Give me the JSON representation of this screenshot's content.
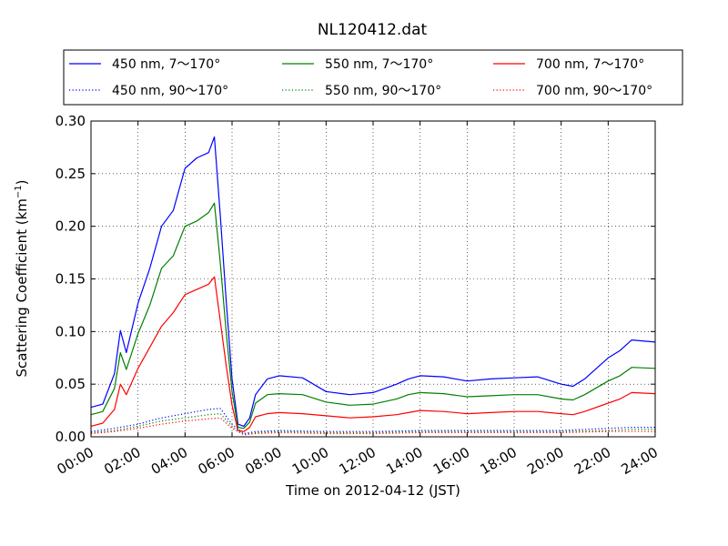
{
  "chart_data": {
    "type": "line",
    "title": "NL120412.dat",
    "xlabel": "Time on 2012-04-12 (JST)",
    "ylabel": "Scattering Coefficient (km",
    "ylabel_sup": "−1",
    "ylabel_end": ")",
    "xlim": [
      "00:00",
      "24:00"
    ],
    "ylim": [
      0.0,
      0.3
    ],
    "grid": true,
    "legend_position": "top",
    "x_ticks": [
      "00:00",
      "02:00",
      "04:00",
      "06:00",
      "08:00",
      "10:00",
      "12:00",
      "14:00",
      "16:00",
      "18:00",
      "20:00",
      "22:00",
      "24:00"
    ],
    "y_ticks": [
      "0.00",
      "0.05",
      "0.10",
      "0.15",
      "0.20",
      "0.25",
      "0.30"
    ],
    "series": [
      {
        "name": "450 nm, 7～170°",
        "color": "#0000ff",
        "dash": "solid",
        "x": [
          "00:00",
          "00:30",
          "01:00",
          "01:15",
          "01:30",
          "02:00",
          "02:30",
          "03:00",
          "03:30",
          "04:00",
          "04:30",
          "05:00",
          "05:15",
          "05:30",
          "05:45",
          "06:00",
          "06:15",
          "06:30",
          "06:45",
          "07:00",
          "07:30",
          "08:00",
          "09:00",
          "10:00",
          "11:00",
          "12:00",
          "13:00",
          "13:30",
          "14:00",
          "15:00",
          "16:00",
          "17:00",
          "18:00",
          "19:00",
          "20:00",
          "20:30",
          "21:00",
          "22:00",
          "22:30",
          "23:00",
          "24:00"
        ],
        "values": [
          0.028,
          0.031,
          0.06,
          0.101,
          0.08,
          0.127,
          0.16,
          0.2,
          0.215,
          0.255,
          0.265,
          0.27,
          0.285,
          0.21,
          0.13,
          0.055,
          0.012,
          0.01,
          0.018,
          0.04,
          0.055,
          0.058,
          0.056,
          0.043,
          0.04,
          0.042,
          0.05,
          0.055,
          0.058,
          0.057,
          0.053,
          0.055,
          0.056,
          0.057,
          0.05,
          0.048,
          0.055,
          0.075,
          0.082,
          0.092,
          0.09
        ]
      },
      {
        "name": "550 nm, 7～170°",
        "color": "#008000",
        "dash": "solid",
        "x": [
          "00:00",
          "00:30",
          "01:00",
          "01:15",
          "01:30",
          "02:00",
          "02:30",
          "03:00",
          "03:30",
          "04:00",
          "04:30",
          "05:00",
          "05:15",
          "05:30",
          "05:45",
          "06:00",
          "06:15",
          "06:30",
          "06:45",
          "07:00",
          "07:30",
          "08:00",
          "09:00",
          "10:00",
          "11:00",
          "12:00",
          "13:00",
          "13:30",
          "14:00",
          "15:00",
          "16:00",
          "17:00",
          "18:00",
          "19:00",
          "20:00",
          "20:30",
          "21:00",
          "22:00",
          "22:30",
          "23:00",
          "24:00"
        ],
        "values": [
          0.021,
          0.024,
          0.046,
          0.08,
          0.064,
          0.098,
          0.125,
          0.16,
          0.172,
          0.2,
          0.205,
          0.213,
          0.222,
          0.165,
          0.1,
          0.043,
          0.009,
          0.008,
          0.014,
          0.032,
          0.04,
          0.041,
          0.04,
          0.033,
          0.03,
          0.031,
          0.036,
          0.04,
          0.042,
          0.041,
          0.038,
          0.039,
          0.04,
          0.04,
          0.036,
          0.035,
          0.04,
          0.053,
          0.058,
          0.066,
          0.065
        ]
      },
      {
        "name": "700 nm, 7～170°",
        "color": "#ff0000",
        "dash": "solid",
        "x": [
          "00:00",
          "00:30",
          "01:00",
          "01:15",
          "01:30",
          "02:00",
          "02:30",
          "03:00",
          "03:30",
          "04:00",
          "04:30",
          "05:00",
          "05:15",
          "05:30",
          "05:45",
          "06:00",
          "06:15",
          "06:30",
          "06:45",
          "07:00",
          "07:30",
          "08:00",
          "09:00",
          "10:00",
          "11:00",
          "12:00",
          "13:00",
          "13:30",
          "14:00",
          "15:00",
          "16:00",
          "17:00",
          "18:00",
          "19:00",
          "20:00",
          "20:30",
          "21:00",
          "22:00",
          "22:30",
          "23:00",
          "24:00"
        ],
        "values": [
          0.01,
          0.013,
          0.026,
          0.05,
          0.04,
          0.065,
          0.085,
          0.105,
          0.118,
          0.135,
          0.14,
          0.145,
          0.152,
          0.11,
          0.068,
          0.03,
          0.006,
          0.005,
          0.009,
          0.019,
          0.022,
          0.023,
          0.022,
          0.02,
          0.018,
          0.019,
          0.021,
          0.023,
          0.025,
          0.024,
          0.022,
          0.023,
          0.024,
          0.024,
          0.022,
          0.021,
          0.024,
          0.032,
          0.036,
          0.042,
          0.041
        ]
      },
      {
        "name": "450 nm, 90～170°",
        "color": "#0000ff",
        "dash": "dotted",
        "x": [
          "00:00",
          "01:00",
          "02:00",
          "03:00",
          "04:00",
          "05:00",
          "05:30",
          "06:00",
          "06:30",
          "07:00",
          "08:00",
          "10:00",
          "12:00",
          "14:00",
          "16:00",
          "18:00",
          "20:00",
          "22:00",
          "23:00",
          "24:00"
        ],
        "values": [
          0.005,
          0.008,
          0.012,
          0.018,
          0.022,
          0.026,
          0.027,
          0.012,
          0.003,
          0.005,
          0.006,
          0.005,
          0.005,
          0.006,
          0.006,
          0.006,
          0.006,
          0.008,
          0.009,
          0.009
        ]
      },
      {
        "name": "550 nm, 90～170°",
        "color": "#008000",
        "dash": "dotted",
        "x": [
          "00:00",
          "01:00",
          "02:00",
          "03:00",
          "04:00",
          "05:00",
          "05:30",
          "06:00",
          "06:30",
          "07:00",
          "08:00",
          "10:00",
          "12:00",
          "14:00",
          "16:00",
          "18:00",
          "20:00",
          "22:00",
          "23:00",
          "24:00"
        ],
        "values": [
          0.004,
          0.006,
          0.01,
          0.015,
          0.018,
          0.021,
          0.022,
          0.01,
          0.002,
          0.004,
          0.005,
          0.004,
          0.004,
          0.005,
          0.005,
          0.005,
          0.005,
          0.006,
          0.007,
          0.007
        ]
      },
      {
        "name": "700 nm, 90～170°",
        "color": "#ff0000",
        "dash": "dotted",
        "x": [
          "00:00",
          "01:00",
          "02:00",
          "03:00",
          "04:00",
          "05:00",
          "05:30",
          "06:00",
          "06:30",
          "07:00",
          "08:00",
          "10:00",
          "12:00",
          "14:00",
          "16:00",
          "18:00",
          "20:00",
          "22:00",
          "23:00",
          "24:00"
        ],
        "values": [
          0.003,
          0.005,
          0.008,
          0.012,
          0.015,
          0.017,
          0.018,
          0.008,
          0.002,
          0.003,
          0.004,
          0.003,
          0.003,
          0.004,
          0.004,
          0.004,
          0.004,
          0.005,
          0.005,
          0.005
        ]
      }
    ]
  }
}
